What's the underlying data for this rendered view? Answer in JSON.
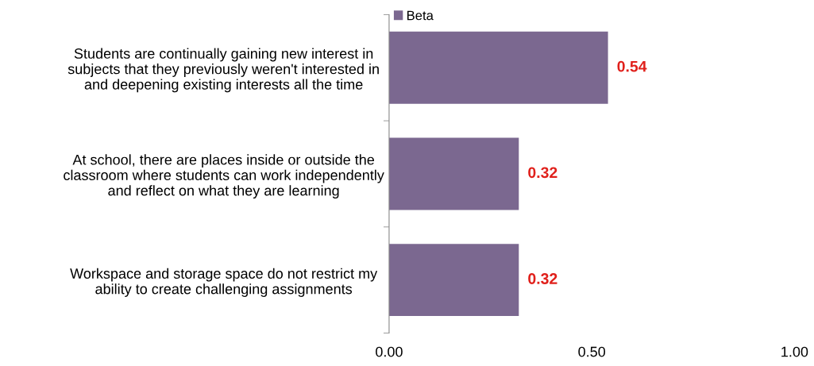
{
  "chart_data": {
    "type": "bar",
    "orientation": "horizontal",
    "categories": [
      "Students are continually gaining new interest in\nsubjects that they previously weren't interested in\nand deepening existing interests all the time",
      "At school, there are places inside or outside the\nclassroom where students can work independently\nand reflect on what they are learning",
      "Workspace and storage space do not restrict my\nability to create challenging assignments"
    ],
    "series": [
      {
        "name": "Beta",
        "color": "#7b6890",
        "values": [
          0.54,
          0.32,
          0.32
        ],
        "value_labels": [
          "0.54",
          "0.32",
          "0.32"
        ]
      }
    ],
    "xlim": [
      0,
      1
    ],
    "xticks": [
      {
        "value": 0,
        "label": "0.00"
      },
      {
        "value": 0.5,
        "label": "0.50"
      },
      {
        "value": 1,
        "label": "1.00"
      }
    ],
    "grid": false,
    "legend": "top left"
  }
}
